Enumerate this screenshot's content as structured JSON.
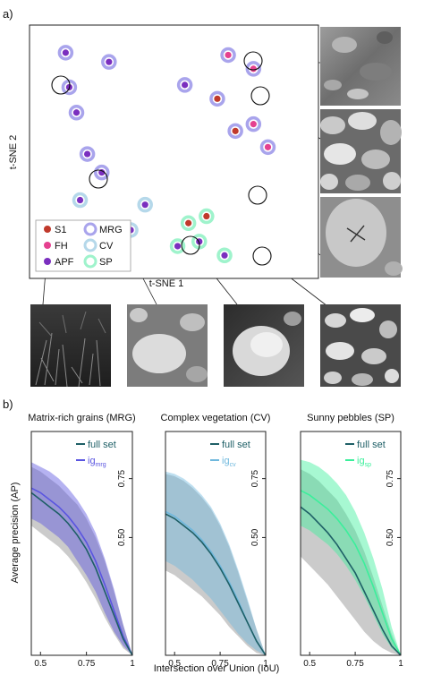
{
  "panel_a": {
    "label": "a)",
    "xlabel": "t-SNE 1",
    "ylabel": "t-SNE 2",
    "legend": [
      {
        "key": "S1",
        "kind": "class",
        "color": "#c0392b"
      },
      {
        "key": "FH",
        "kind": "class",
        "color": "#e5408f"
      },
      {
        "key": "APF",
        "kind": "class",
        "color": "#7b2fbf"
      },
      {
        "key": "MRG",
        "kind": "ring",
        "color": "#a9a4ec"
      },
      {
        "key": "CV",
        "kind": "ring",
        "color": "#b5d8ea"
      },
      {
        "key": "SP",
        "kind": "ring",
        "color": "#9ff3cc"
      }
    ],
    "photos": [
      "gravel-photo",
      "rock-closeup-photo",
      "pebbles-photo",
      "marked-rock-photo",
      "grass-photo",
      "rocks-photo",
      "sunny-rock-photo",
      "sunny-pebbles-photo"
    ]
  },
  "panel_b": {
    "label": "b)",
    "ylabel": "Average precision (AP)",
    "xlabel": "Intersection over Union (IoU)"
  },
  "colors": {
    "full_set": "#1e5f66",
    "full_band": "#b9b9b9",
    "mrg": "#5a55e0",
    "cv": "#6fb8dd",
    "sp": "#3bef9b"
  },
  "chart_data": [
    {
      "type": "scatter",
      "xlabel": "t-SNE 1",
      "ylabel": "t-SNE 2",
      "series": [
        {
          "name": "APF",
          "ring": "MRG",
          "points": [
            [
              -30,
              38
            ],
            [
              -18,
              34
            ],
            [
              -29,
              23
            ],
            [
              -27,
              12
            ],
            [
              -24,
              -6
            ],
            [
              -20,
              -14
            ],
            [
              3,
              24
            ]
          ]
        },
        {
          "name": "FH",
          "ring": "MRG",
          "points": [
            [
              15,
              37
            ],
            [
              22,
              31
            ],
            [
              22,
              7
            ],
            [
              26,
              -3
            ]
          ]
        },
        {
          "name": "S1",
          "ring": "MRG",
          "points": [
            [
              12,
              18
            ],
            [
              17,
              4
            ]
          ]
        },
        {
          "name": "APF",
          "ring": "CV",
          "points": [
            [
              -26,
              -26
            ],
            [
              -12,
              -39
            ],
            [
              -17,
              -48
            ],
            [
              -8,
              -28
            ]
          ]
        },
        {
          "name": "S1",
          "ring": "SP",
          "points": [
            [
              4,
              -36
            ],
            [
              9,
              -33
            ]
          ]
        },
        {
          "name": "APF",
          "ring": "SP",
          "points": [
            [
              7,
              -44
            ],
            [
              14,
              -50
            ],
            [
              1,
              -46
            ]
          ]
        }
      ]
    },
    {
      "type": "line",
      "title": "Matrix-rich grains (MRG)",
      "xlim": [
        0.45,
        1.0
      ],
      "ylim": [
        0.0,
        0.95
      ],
      "xticks": [
        "0.5",
        "0.75",
        "1"
      ],
      "yticks": [
        "0.50",
        "0.75"
      ],
      "x": [
        0.45,
        0.5,
        0.55,
        0.6,
        0.65,
        0.7,
        0.75,
        0.8,
        0.85,
        0.9,
        0.95,
        1.0
      ],
      "series": [
        {
          "name": "full set",
          "values": [
            0.69,
            0.66,
            0.63,
            0.6,
            0.56,
            0.51,
            0.45,
            0.37,
            0.27,
            0.17,
            0.07,
            0.0
          ],
          "lower": [
            0.55,
            0.52,
            0.49,
            0.46,
            0.42,
            0.37,
            0.31,
            0.24,
            0.16,
            0.09,
            0.03,
            0.0
          ],
          "upper": [
            0.8,
            0.78,
            0.75,
            0.72,
            0.68,
            0.64,
            0.58,
            0.5,
            0.4,
            0.27,
            0.13,
            0.0
          ]
        },
        {
          "name": "ig_mrg",
          "name_main": "ig",
          "name_sub": "mrg",
          "values": [
            0.71,
            0.69,
            0.66,
            0.63,
            0.59,
            0.54,
            0.48,
            0.4,
            0.3,
            0.19,
            0.08,
            0.0
          ],
          "lower": [
            0.58,
            0.56,
            0.53,
            0.5,
            0.46,
            0.4,
            0.34,
            0.27,
            0.18,
            0.1,
            0.04,
            0.0
          ],
          "upper": [
            0.82,
            0.8,
            0.78,
            0.75,
            0.71,
            0.66,
            0.6,
            0.52,
            0.41,
            0.28,
            0.13,
            0.0
          ]
        }
      ]
    },
    {
      "type": "line",
      "title": "Complex vegetation (CV)",
      "xlim": [
        0.45,
        1.0
      ],
      "ylim": [
        0.0,
        0.95
      ],
      "xticks": [
        "0.5",
        "0.75",
        "1"
      ],
      "yticks": [
        "0.50",
        "0.75"
      ],
      "x": [
        0.45,
        0.5,
        0.55,
        0.6,
        0.65,
        0.7,
        0.75,
        0.8,
        0.85,
        0.9,
        0.95,
        1.0
      ],
      "series": [
        {
          "name": "full set",
          "values": [
            0.6,
            0.58,
            0.55,
            0.52,
            0.48,
            0.43,
            0.37,
            0.3,
            0.22,
            0.14,
            0.06,
            0.0
          ],
          "lower": [
            0.36,
            0.34,
            0.31,
            0.28,
            0.25,
            0.21,
            0.17,
            0.12,
            0.08,
            0.04,
            0.01,
            0.0
          ],
          "upper": [
            0.77,
            0.76,
            0.74,
            0.71,
            0.67,
            0.62,
            0.55,
            0.46,
            0.35,
            0.23,
            0.11,
            0.0
          ]
        },
        {
          "name": "ig_cv",
          "name_main": "ig",
          "name_sub": "cv",
          "values": [
            0.61,
            0.59,
            0.56,
            0.53,
            0.49,
            0.44,
            0.38,
            0.31,
            0.23,
            0.14,
            0.06,
            0.0
          ],
          "lower": [
            0.4,
            0.38,
            0.35,
            0.32,
            0.28,
            0.24,
            0.19,
            0.14,
            0.09,
            0.05,
            0.02,
            0.0
          ],
          "upper": [
            0.78,
            0.77,
            0.75,
            0.72,
            0.68,
            0.63,
            0.56,
            0.47,
            0.36,
            0.24,
            0.11,
            0.0
          ]
        }
      ]
    },
    {
      "type": "line",
      "title": "Sunny pebbles (SP)",
      "xlim": [
        0.45,
        1.0
      ],
      "ylim": [
        0.0,
        0.95
      ],
      "xticks": [
        "0.5",
        "0.75",
        "1"
      ],
      "yticks": [
        "0.50",
        "0.75"
      ],
      "x": [
        0.45,
        0.5,
        0.55,
        0.6,
        0.65,
        0.7,
        0.75,
        0.8,
        0.85,
        0.9,
        0.95,
        1.0
      ],
      "series": [
        {
          "name": "full set",
          "values": [
            0.63,
            0.6,
            0.56,
            0.52,
            0.47,
            0.41,
            0.35,
            0.27,
            0.19,
            0.11,
            0.04,
            0.0
          ],
          "lower": [
            0.42,
            0.38,
            0.34,
            0.3,
            0.25,
            0.2,
            0.15,
            0.1,
            0.06,
            0.03,
            0.01,
            0.0
          ],
          "upper": [
            0.79,
            0.77,
            0.74,
            0.7,
            0.66,
            0.6,
            0.53,
            0.44,
            0.33,
            0.21,
            0.09,
            0.0
          ]
        },
        {
          "name": "ig_sp",
          "name_main": "ig",
          "name_sub": "sp",
          "values": [
            0.7,
            0.68,
            0.65,
            0.62,
            0.58,
            0.53,
            0.47,
            0.39,
            0.29,
            0.18,
            0.07,
            0.0
          ],
          "lower": [
            0.55,
            0.53,
            0.5,
            0.47,
            0.43,
            0.38,
            0.32,
            0.25,
            0.17,
            0.09,
            0.03,
            0.0
          ],
          "upper": [
            0.83,
            0.82,
            0.8,
            0.77,
            0.73,
            0.68,
            0.61,
            0.52,
            0.41,
            0.28,
            0.12,
            0.0
          ]
        }
      ]
    }
  ]
}
